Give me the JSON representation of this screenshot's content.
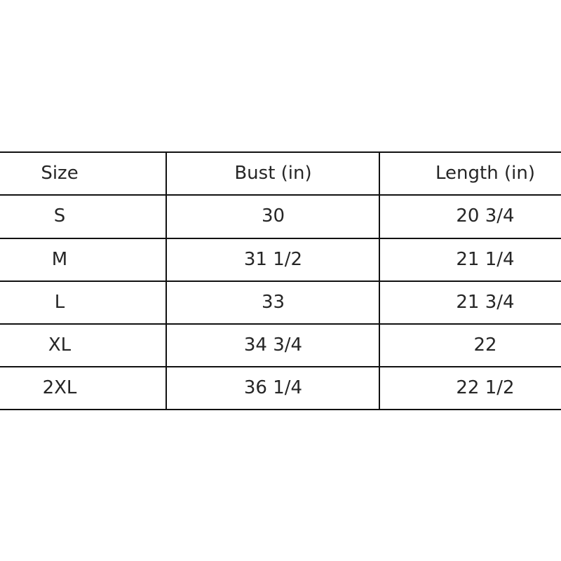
{
  "table": {
    "headers": [
      "Size",
      "Bust (in)",
      "Length (in)"
    ],
    "rows": [
      [
        "S",
        "30",
        "20 3/4"
      ],
      [
        "M",
        "31 1/2",
        "21 1/4"
      ],
      [
        "L",
        "33",
        "21 3/4"
      ],
      [
        "XL",
        "34 3/4",
        "22"
      ],
      [
        "2XL",
        "36 1/4",
        "22 1/2"
      ]
    ]
  }
}
